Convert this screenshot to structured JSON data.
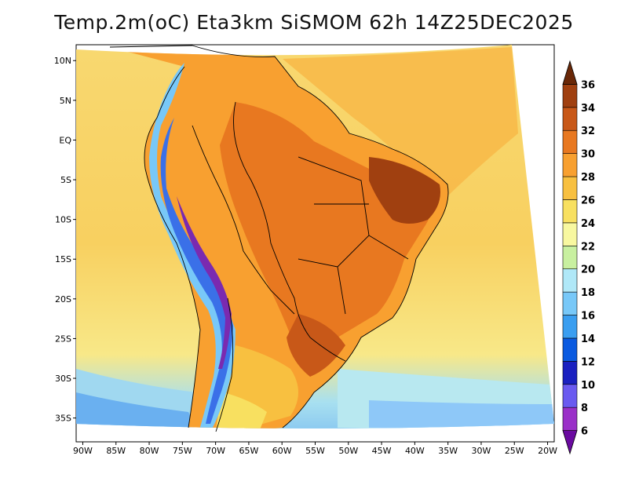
{
  "title": "Temp.2m(oC) Eta3km SiSMOM 62h 14Z25DEC2025",
  "map": {
    "variable": "2 m air temperature",
    "units": "oC",
    "lat_range": [
      -38,
      12
    ],
    "lon_range": [
      -91,
      -19
    ],
    "lat_ticks": [
      {
        "value": 10,
        "label": "10N"
      },
      {
        "value": 5,
        "label": "5N"
      },
      {
        "value": 0,
        "label": "EQ"
      },
      {
        "value": -5,
        "label": "5S"
      },
      {
        "value": -10,
        "label": "10S"
      },
      {
        "value": -15,
        "label": "15S"
      },
      {
        "value": -20,
        "label": "20S"
      },
      {
        "value": -25,
        "label": "25S"
      },
      {
        "value": -30,
        "label": "30S"
      },
      {
        "value": -35,
        "label": "35S"
      }
    ],
    "lon_ticks": [
      {
        "value": -90,
        "label": "90W"
      },
      {
        "value": -85,
        "label": "85W"
      },
      {
        "value": -80,
        "label": "80W"
      },
      {
        "value": -75,
        "label": "75W"
      },
      {
        "value": -70,
        "label": "70W"
      },
      {
        "value": -65,
        "label": "65W"
      },
      {
        "value": -60,
        "label": "60W"
      },
      {
        "value": -55,
        "label": "55W"
      },
      {
        "value": -50,
        "label": "50W"
      },
      {
        "value": -45,
        "label": "45W"
      },
      {
        "value": -40,
        "label": "40W"
      },
      {
        "value": -35,
        "label": "35W"
      },
      {
        "value": -30,
        "label": "30W"
      },
      {
        "value": -25,
        "label": "25W"
      },
      {
        "value": -20,
        "label": "20W"
      }
    ]
  },
  "colorbar": {
    "levels": [
      "6",
      "8",
      "10",
      "12",
      "14",
      "16",
      "18",
      "20",
      "22",
      "24",
      "26",
      "28",
      "30",
      "32",
      "34",
      "36"
    ],
    "colors": [
      "#6a0aa0",
      "#9a30c8",
      "#6a5af0",
      "#1a20c0",
      "#0a5ae0",
      "#3a9ef0",
      "#78c8f8",
      "#b0e8f8",
      "#c8f0a0",
      "#f8f8a0",
      "#f8e060",
      "#f8c040",
      "#f8a030",
      "#e87820",
      "#c85818",
      "#a04010",
      "#6a2808"
    ]
  }
}
